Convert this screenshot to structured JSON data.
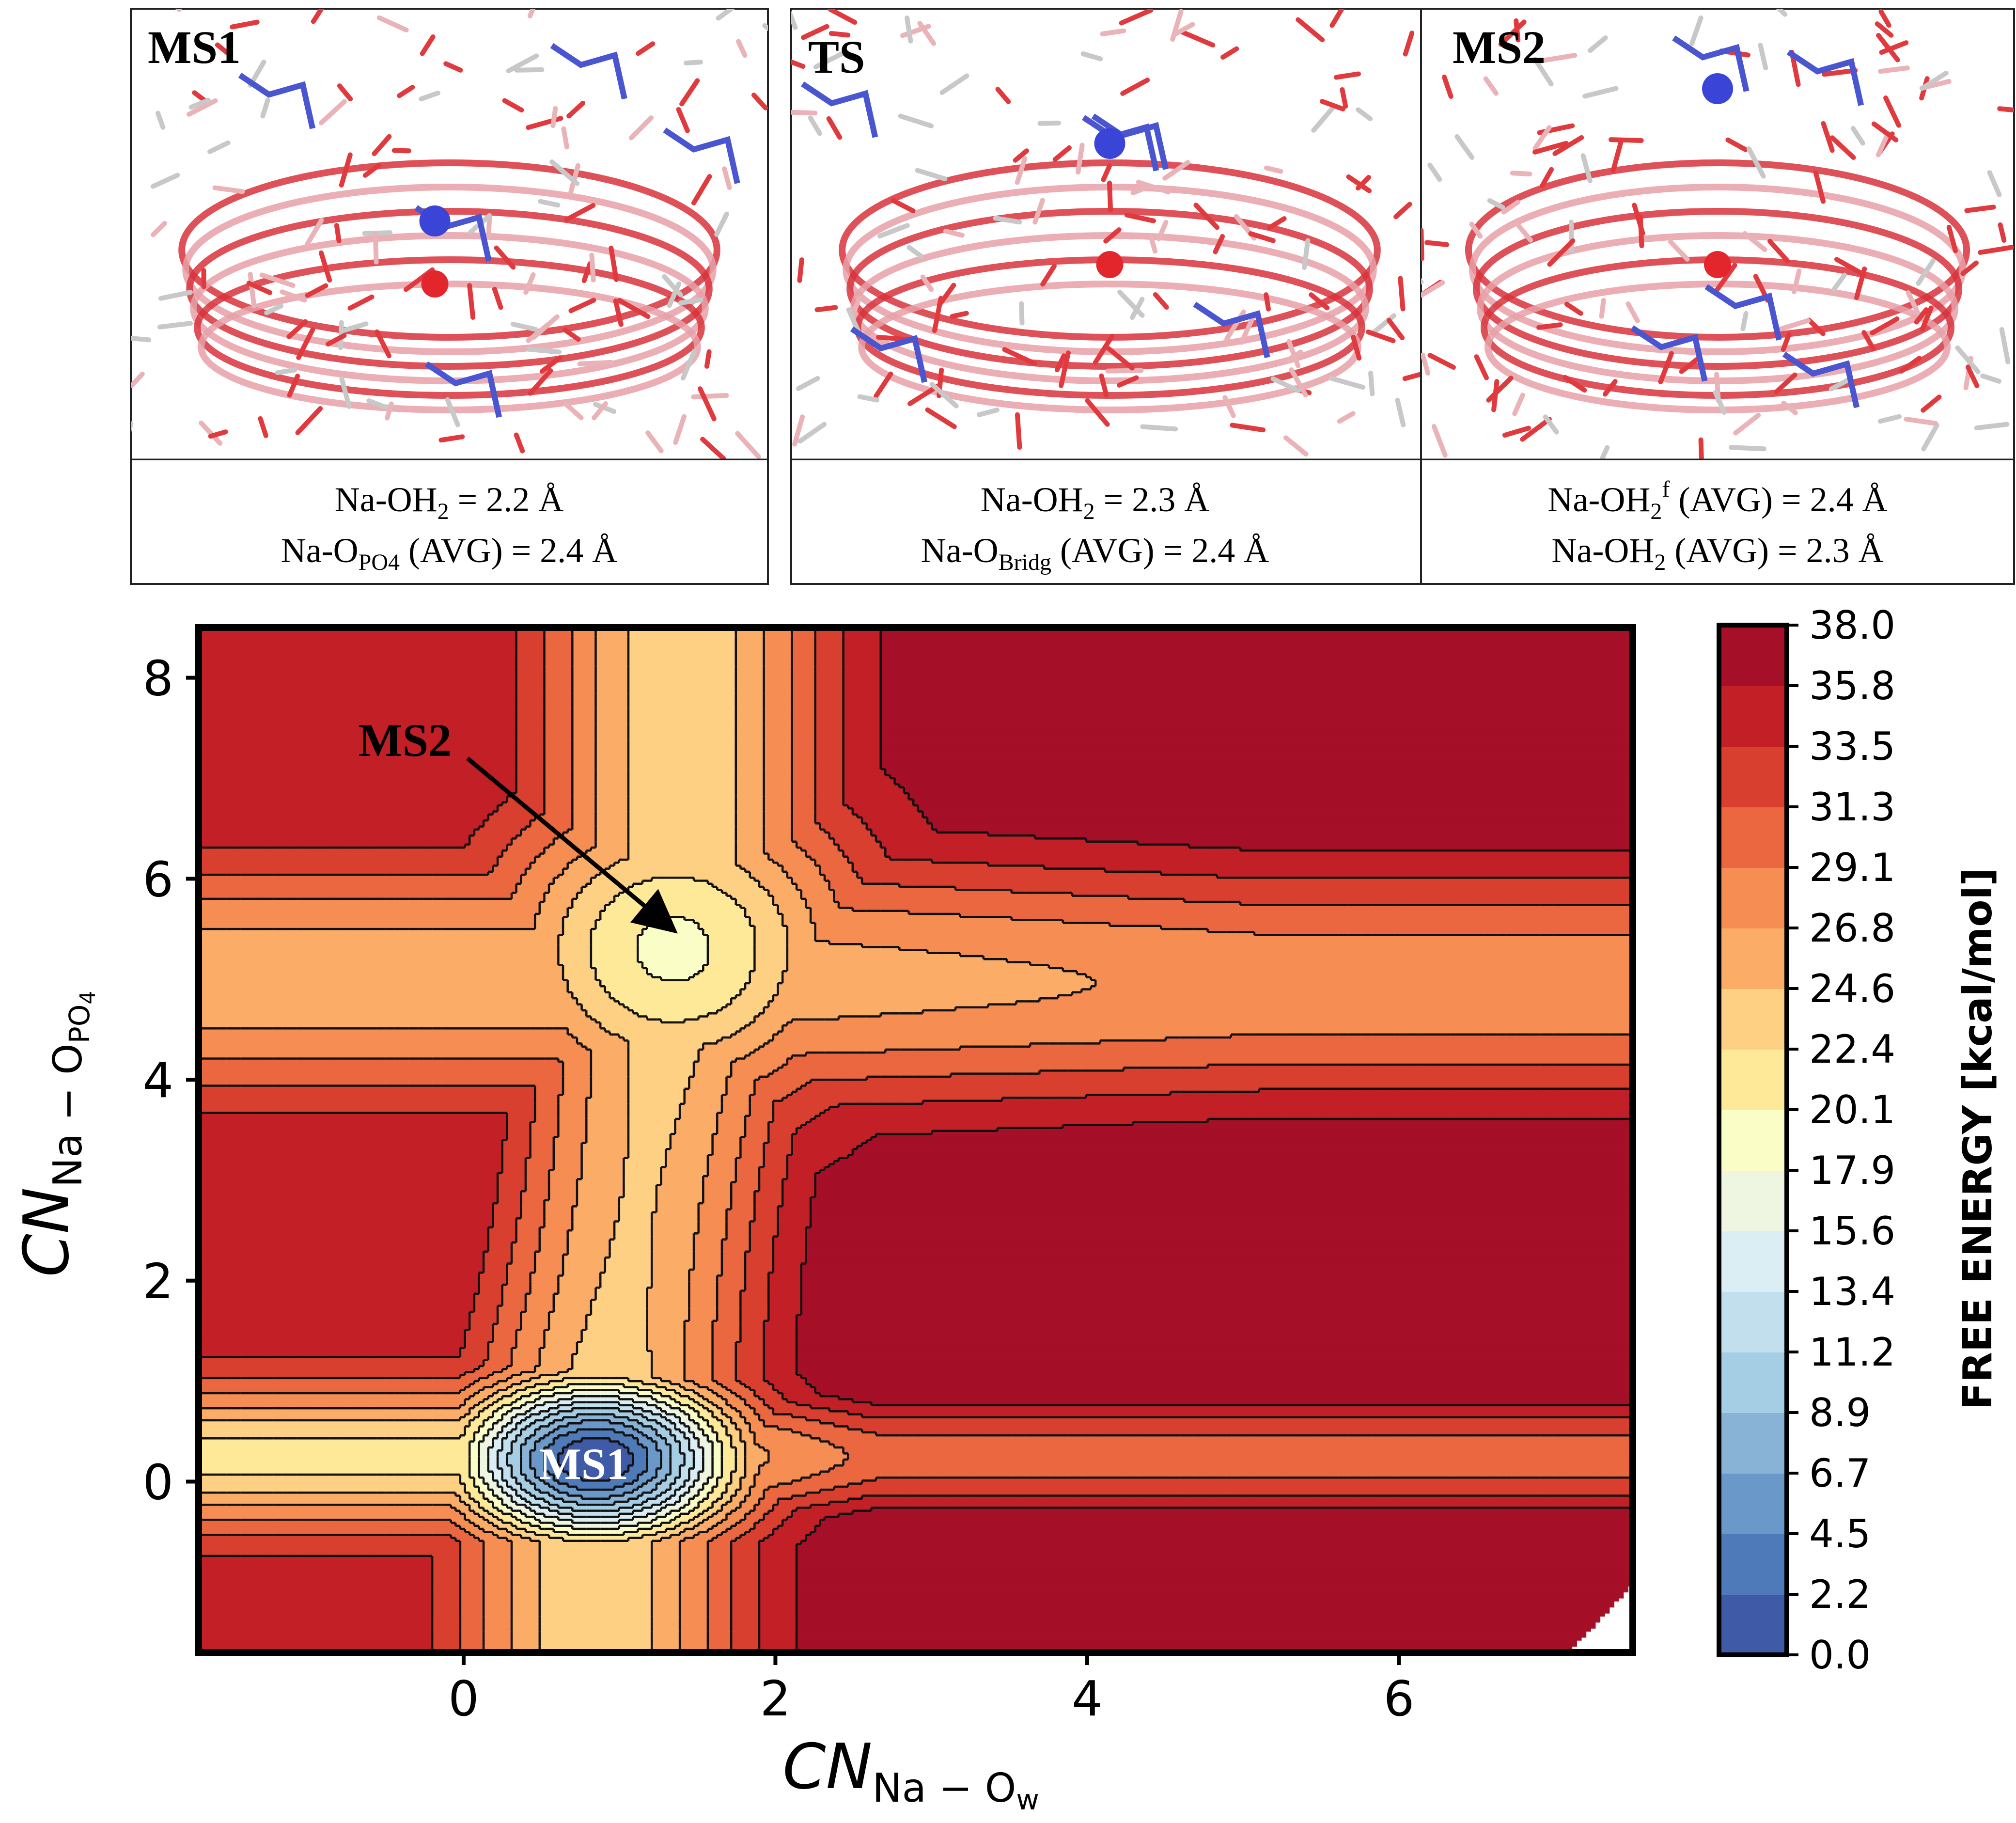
{
  "panels": [
    {
      "title": "MS1",
      "caption_line1": {
        "base": "Na-OH",
        "sub": "2",
        "sup": "",
        "tail": " = 2.2 Å"
      },
      "caption_line2": {
        "base": "Na-O",
        "sub": "PO4",
        "sup": "",
        "tail": " (AVG) = 2.4 Å"
      }
    },
    {
      "title": "TS",
      "caption_line1": {
        "base": "Na-OH",
        "sub": "2",
        "sup": "",
        "tail": " = 2.3 Å"
      },
      "caption_line2": {
        "base": "Na-O",
        "sub": "Bridg",
        "sup": "",
        "tail": " (AVG) = 2.4 Å"
      }
    },
    {
      "title": "MS2",
      "caption_line1": {
        "base": "Na-OH",
        "sub": "2",
        "sup": "f",
        "tail": " (AVG) = 2.4 Å"
      },
      "caption_line2": {
        "base": "Na-OH",
        "sub": "2",
        "sup": "",
        "tail": " (AVG) = 2.3 Å"
      }
    }
  ],
  "chart_data": {
    "type": "contour",
    "title": "",
    "xlabel": {
      "base": "CN",
      "sub": "Na − O",
      "subsub": "w"
    },
    "ylabel": {
      "base": "CN",
      "sub": "Na − O",
      "subsub": "PO",
      "subsubsub": "4"
    },
    "xlim": [
      -1.7,
      7.5
    ],
    "ylim": [
      -1.7,
      8.5
    ],
    "xticks": [
      "0",
      "2",
      "4",
      "6"
    ],
    "xtick_values": [
      0,
      2,
      4,
      6
    ],
    "yticks": [
      "0",
      "2",
      "4",
      "6",
      "8"
    ],
    "ytick_values": [
      0,
      2,
      4,
      6,
      8
    ],
    "colorbar": {
      "label": "FREE ENERGY [kcal/mol]",
      "levels": [
        0.0,
        2.2,
        4.5,
        6.7,
        8.9,
        11.2,
        13.4,
        15.6,
        17.9,
        20.1,
        22.4,
        24.6,
        26.8,
        29.1,
        31.3,
        33.5,
        35.8,
        38.0
      ],
      "tick_labels": [
        "0.0",
        "2.2",
        "4.5",
        "6.7",
        "8.9",
        "11.2",
        "13.4",
        "15.6",
        "17.9",
        "20.1",
        "22.4",
        "24.6",
        "26.8",
        "29.1",
        "31.3",
        "33.5",
        "35.8",
        "38.0"
      ],
      "colors": [
        "#313695",
        "#3f5aa7",
        "#4f7ab9",
        "#6a98c8",
        "#88b3d6",
        "#a5cde3",
        "#c1dfec",
        "#dbeef3",
        "#eef6e2",
        "#fbfdc7",
        "#fee999",
        "#fed083",
        "#fbad68",
        "#f68d52",
        "#ea6740",
        "#d93f2f",
        "#c21f27",
        "#a50f27"
      ]
    },
    "minima": [
      {
        "label": "MS1",
        "x": 0.85,
        "y": 0.25,
        "energy": 0.0
      },
      {
        "label": "MS2",
        "x": 1.4,
        "y": 5.3,
        "energy": 20.1
      }
    ],
    "annotations": [
      {
        "text": "MS1",
        "x": 0.85,
        "y": 0.22
      },
      {
        "text": "MS2",
        "x": -0.9,
        "y": 7.3,
        "arrow_to": [
          1.45,
          5.4
        ]
      }
    ]
  }
}
